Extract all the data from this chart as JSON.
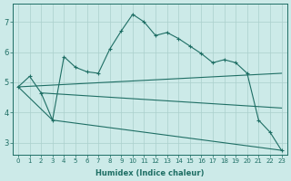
{
  "xlabel": "Humidex (Indice chaleur)",
  "background_color": "#cceae8",
  "grid_color": "#aacfcc",
  "line_color": "#1e6e64",
  "xlim": [
    -0.5,
    23.5
  ],
  "ylim": [
    2.6,
    7.6
  ],
  "yticks": [
    3,
    4,
    5,
    6,
    7
  ],
  "xticks": [
    0,
    1,
    2,
    3,
    4,
    5,
    6,
    7,
    8,
    9,
    10,
    11,
    12,
    13,
    14,
    15,
    16,
    17,
    18,
    19,
    20,
    21,
    22,
    23
  ],
  "line1_x": [
    0,
    1,
    2,
    3,
    4,
    5,
    6,
    7,
    8,
    9,
    10,
    11,
    12,
    13,
    14,
    15,
    16,
    17,
    18,
    19,
    20,
    21,
    22,
    23
  ],
  "line1_y": [
    4.85,
    5.2,
    4.65,
    3.75,
    5.85,
    5.5,
    5.35,
    5.3,
    6.1,
    6.7,
    7.25,
    7.0,
    6.55,
    6.65,
    6.45,
    6.2,
    5.95,
    5.65,
    5.75,
    5.65,
    5.3,
    3.75,
    3.35,
    2.75
  ],
  "line2_x": [
    0,
    23
  ],
  "line2_y": [
    4.85,
    5.3
  ],
  "line3_x": [
    0,
    3,
    23
  ],
  "line3_y": [
    4.85,
    3.75,
    2.75
  ],
  "line4_x": [
    2,
    23
  ],
  "line4_y": [
    4.65,
    4.15
  ]
}
